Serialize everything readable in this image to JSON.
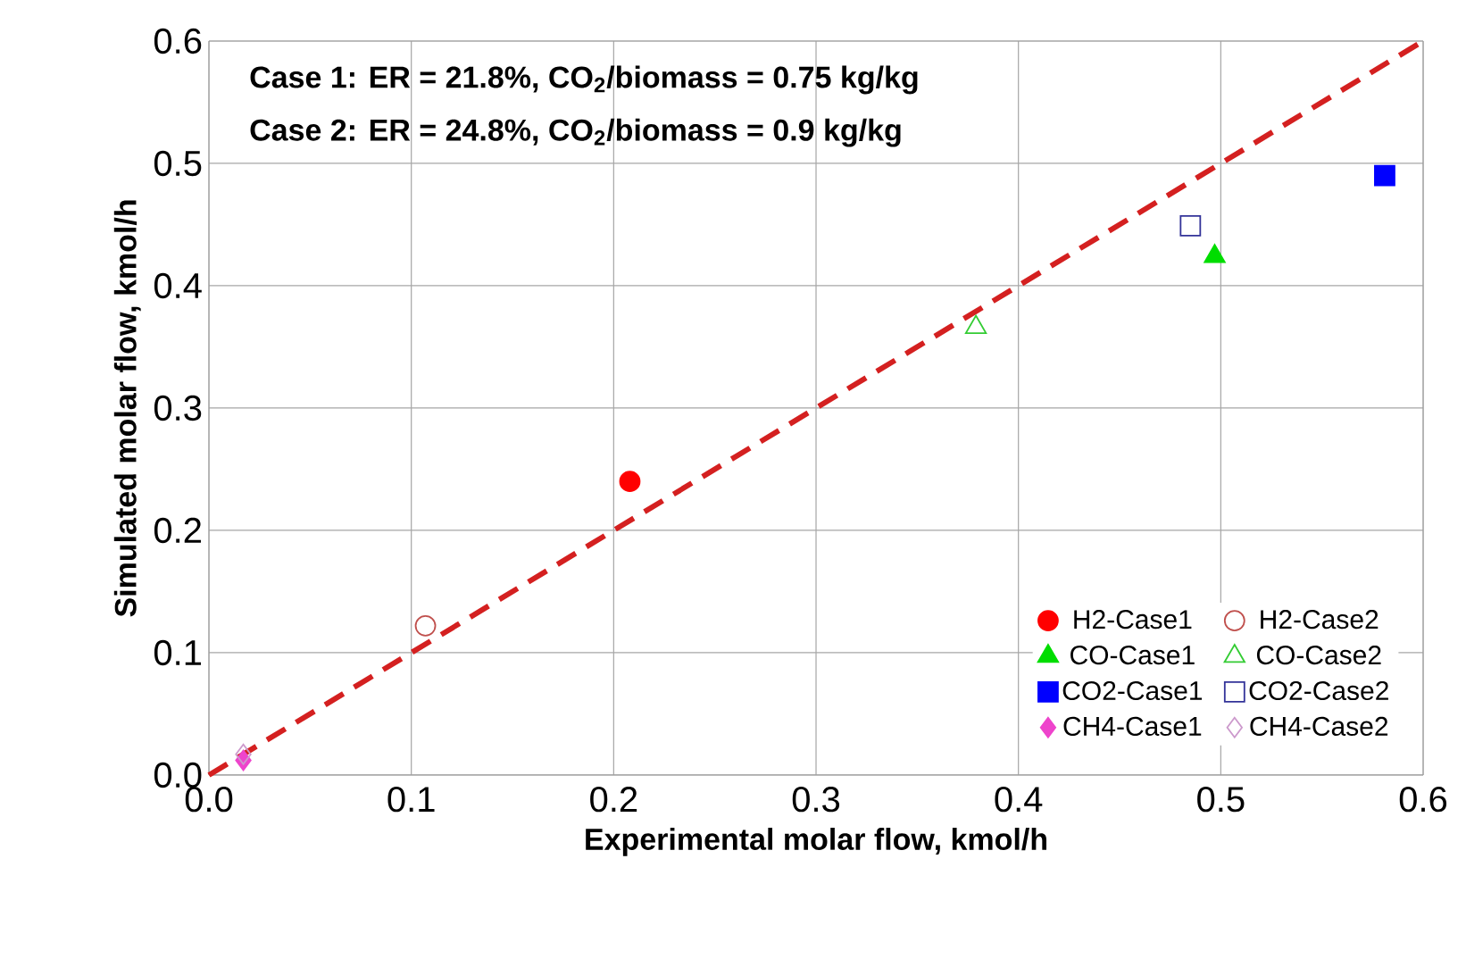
{
  "chart_data": {
    "type": "scatter",
    "xlabel": "Experimental molar flow, kmol/h",
    "ylabel": "Simulated molar flow, kmol/h",
    "annotations": [
      "Case 1: ER = 21.8%, CO$_{2}$/biomass = 0.75 kg/kg",
      "Case 2: ER = 24.8%, CO$_{2}$/biomass = 0.9 kg/kg"
    ],
    "xlim": [
      0,
      0.6
    ],
    "ylim": [
      0,
      0.6
    ],
    "xticks": [
      {
        "value": 0,
        "label": "0.0"
      },
      0.1,
      0.2,
      0.3,
      0.4,
      0.5,
      0.6
    ],
    "yticks": [
      {
        "value": 0,
        "label": "0.0"
      },
      0.1,
      0.2,
      0.3,
      0.4,
      0.5,
      0.6
    ],
    "grid": true,
    "legend": "bottom right",
    "series": [
      {
        "type": "line",
        "x": [
          0,
          0.6
        ],
        "values": [
          0,
          0.6
        ],
        "color": "#d42020",
        "line_style": "dashed",
        "marker": "none"
      },
      {
        "name": "H2-Case1",
        "x": [
          0.208
        ],
        "values": [
          0.24
        ],
        "color": "#ff0000",
        "marker": "circle"
      },
      {
        "name": "H2-Case2",
        "x": [
          0.107
        ],
        "values": [
          0.122
        ],
        "color": "#c0504d",
        "marker": "circle"
      },
      {
        "name": "CO-Case1",
        "x": [
          0.497
        ],
        "values": [
          0.424
        ],
        "color": "#00dd00",
        "marker": "triangle"
      },
      {
        "name": "CO-Case2",
        "x": [
          0.379
        ],
        "values": [
          0.366
        ],
        "color": "#33cc33",
        "marker": "triangle"
      },
      {
        "name": "CO2-Case1",
        "x": [
          0.581
        ],
        "values": [
          0.49
        ],
        "color": "#0000ff",
        "marker": "square"
      },
      {
        "name": "CO2-Case2",
        "x": [
          0.485
        ],
        "values": [
          0.449
        ],
        "color": "#333399",
        "marker": "square"
      },
      {
        "name": "CH4-Case1",
        "x": [
          0.017
        ],
        "values": [
          0.012
        ],
        "color": "#ee44cc",
        "marker": "diamond"
      },
      {
        "name": "CH4-Case2",
        "x": [
          0.017
        ],
        "values": [
          0.017
        ],
        "color": "#cc99cc",
        "marker": "diamond"
      }
    ]
  }
}
